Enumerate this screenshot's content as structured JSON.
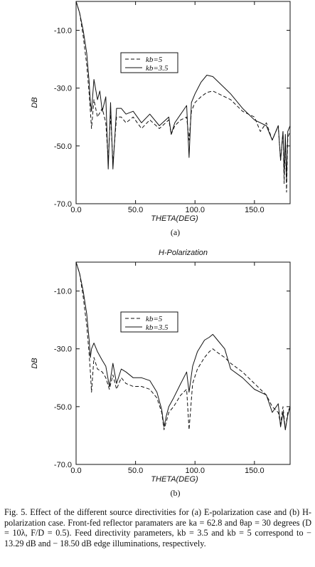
{
  "caption": "Fig. 5.  Effect of the different source directivities for (a) E-polarization case and (b) H-polarization case. Front-fed reflector paramaters are ka = 62.8 and θap = 30 degrees (D = 10λ, F/D = 0.5). Feed directivity parameters, kb = 3.5 and kb = 5 correspond to − 13.29 dB and − 18.50 dB edge illuminations, respectively.",
  "chart_data": [
    {
      "type": "line",
      "panel_label": "(a)",
      "title": "",
      "xlabel": "THETA(DEG)",
      "ylabel": "DB",
      "xlim": [
        0,
        180
      ],
      "ylim": [
        -70,
        0
      ],
      "xticks": [
        "0.0",
        "50.0",
        "100.0",
        "150.0"
      ],
      "yticks": [
        "-10.0",
        "-30.0",
        "-50.0",
        "-70.0"
      ],
      "legend_position": "upper-middle",
      "series": [
        {
          "name": "kb=5",
          "style": "dashed",
          "x": [
            0,
            3,
            6,
            9,
            11,
            12,
            13,
            15,
            18,
            22,
            25,
            27,
            29,
            31,
            34,
            38,
            42,
            48,
            55,
            62,
            70,
            78,
            80,
            83,
            88,
            93,
            95,
            97,
            100,
            105,
            110,
            115,
            120,
            130,
            140,
            150,
            155,
            160,
            165,
            170,
            172,
            174,
            175,
            176,
            177,
            178,
            180
          ],
          "y": [
            0,
            -4,
            -12,
            -22,
            -32,
            -38,
            -44,
            -34,
            -40,
            -37,
            -42,
            -55,
            -39,
            -56,
            -40,
            -40,
            -42,
            -40,
            -44,
            -41,
            -44,
            -41,
            -46,
            -43,
            -41,
            -40,
            -48,
            -38,
            -35,
            -33,
            -31.5,
            -31,
            -32,
            -34,
            -38,
            -40,
            -45,
            -42,
            -48,
            -43,
            -55,
            -45,
            -63,
            -48,
            -66,
            -47,
            -45
          ]
        },
        {
          "name": "kb=3.5",
          "style": "solid",
          "x": [
            0,
            3,
            6,
            9,
            11,
            12,
            13,
            15,
            18,
            20,
            22,
            25,
            27,
            29,
            31,
            34,
            38,
            42,
            48,
            55,
            62,
            70,
            78,
            80,
            83,
            88,
            93,
            95,
            97,
            100,
            105,
            110,
            115,
            120,
            130,
            140,
            150,
            160,
            165,
            170,
            172,
            174,
            175,
            176,
            177,
            178,
            180
          ],
          "y": [
            0,
            -4,
            -10,
            -18,
            -28,
            -35,
            -38,
            -27,
            -34,
            -31,
            -38,
            -33,
            -58,
            -35,
            -58,
            -37,
            -37,
            -39,
            -38,
            -42,
            -39,
            -43,
            -40,
            -46,
            -42,
            -39,
            -36,
            -54,
            -35,
            -32,
            -28,
            -25.5,
            -26,
            -28,
            -32,
            -37,
            -41,
            -43,
            -48,
            -43,
            -55,
            -45,
            -60,
            -46,
            -62,
            -45,
            -43
          ]
        }
      ]
    },
    {
      "type": "line",
      "panel_label": "(b)",
      "title": "H-Polarization",
      "xlabel": "THETA(DEG)",
      "ylabel": "DB",
      "xlim": [
        0,
        180
      ],
      "ylim": [
        -70,
        0
      ],
      "xticks": [
        "0.0",
        "50.0",
        "100.0",
        "150.0"
      ],
      "yticks": [
        "-10.0",
        "-30.0",
        "-50.0",
        "-70.0"
      ],
      "legend_position": "upper-middle",
      "series": [
        {
          "name": "kb=5",
          "style": "dashed",
          "x": [
            0,
            3,
            6,
            9,
            11,
            12,
            13,
            15,
            18,
            22,
            25,
            28,
            31,
            34,
            38,
            42,
            48,
            55,
            62,
            68,
            72,
            74,
            76,
            78,
            82,
            88,
            93,
            95,
            98,
            102,
            108,
            112,
            115,
            118,
            125,
            130,
            140,
            150,
            160,
            165,
            170,
            172,
            174,
            176,
            178,
            180
          ],
          "y": [
            0,
            -4,
            -12,
            -22,
            -32,
            -38,
            -45,
            -33,
            -37,
            -38,
            -40,
            -44,
            -39,
            -44,
            -40,
            -42,
            -43,
            -43,
            -44,
            -47,
            -52,
            -58,
            -55,
            -52,
            -50,
            -46,
            -44,
            -58,
            -42,
            -37,
            -33,
            -31,
            -30,
            -31,
            -33,
            -35,
            -38,
            -42,
            -46,
            -50,
            -52,
            -56,
            -50,
            -58,
            -52,
            -50
          ]
        },
        {
          "name": "kb=3.5",
          "style": "solid",
          "x": [
            0,
            3,
            6,
            9,
            11,
            12,
            13,
            15,
            18,
            22,
            25,
            28,
            31,
            34,
            38,
            42,
            48,
            55,
            62,
            68,
            72,
            74,
            76,
            78,
            82,
            88,
            93,
            95,
            98,
            102,
            108,
            112,
            115,
            118,
            125,
            130,
            140,
            150,
            160,
            165,
            170,
            172,
            174,
            176,
            178,
            180
          ],
          "y": [
            0,
            -4,
            -10,
            -18,
            -27,
            -33,
            -30,
            -28,
            -31,
            -34,
            -36,
            -43,
            -35,
            -42,
            -37,
            -38,
            -40,
            -40,
            -41,
            -45,
            -51,
            -57,
            -53,
            -50,
            -47,
            -42,
            -38,
            -45,
            -36,
            -31,
            -27,
            -26,
            -25,
            -26.5,
            -30,
            -37,
            -40,
            -44,
            -46,
            -52,
            -49,
            -57,
            -52,
            -58,
            -53,
            -50
          ]
        }
      ]
    }
  ]
}
